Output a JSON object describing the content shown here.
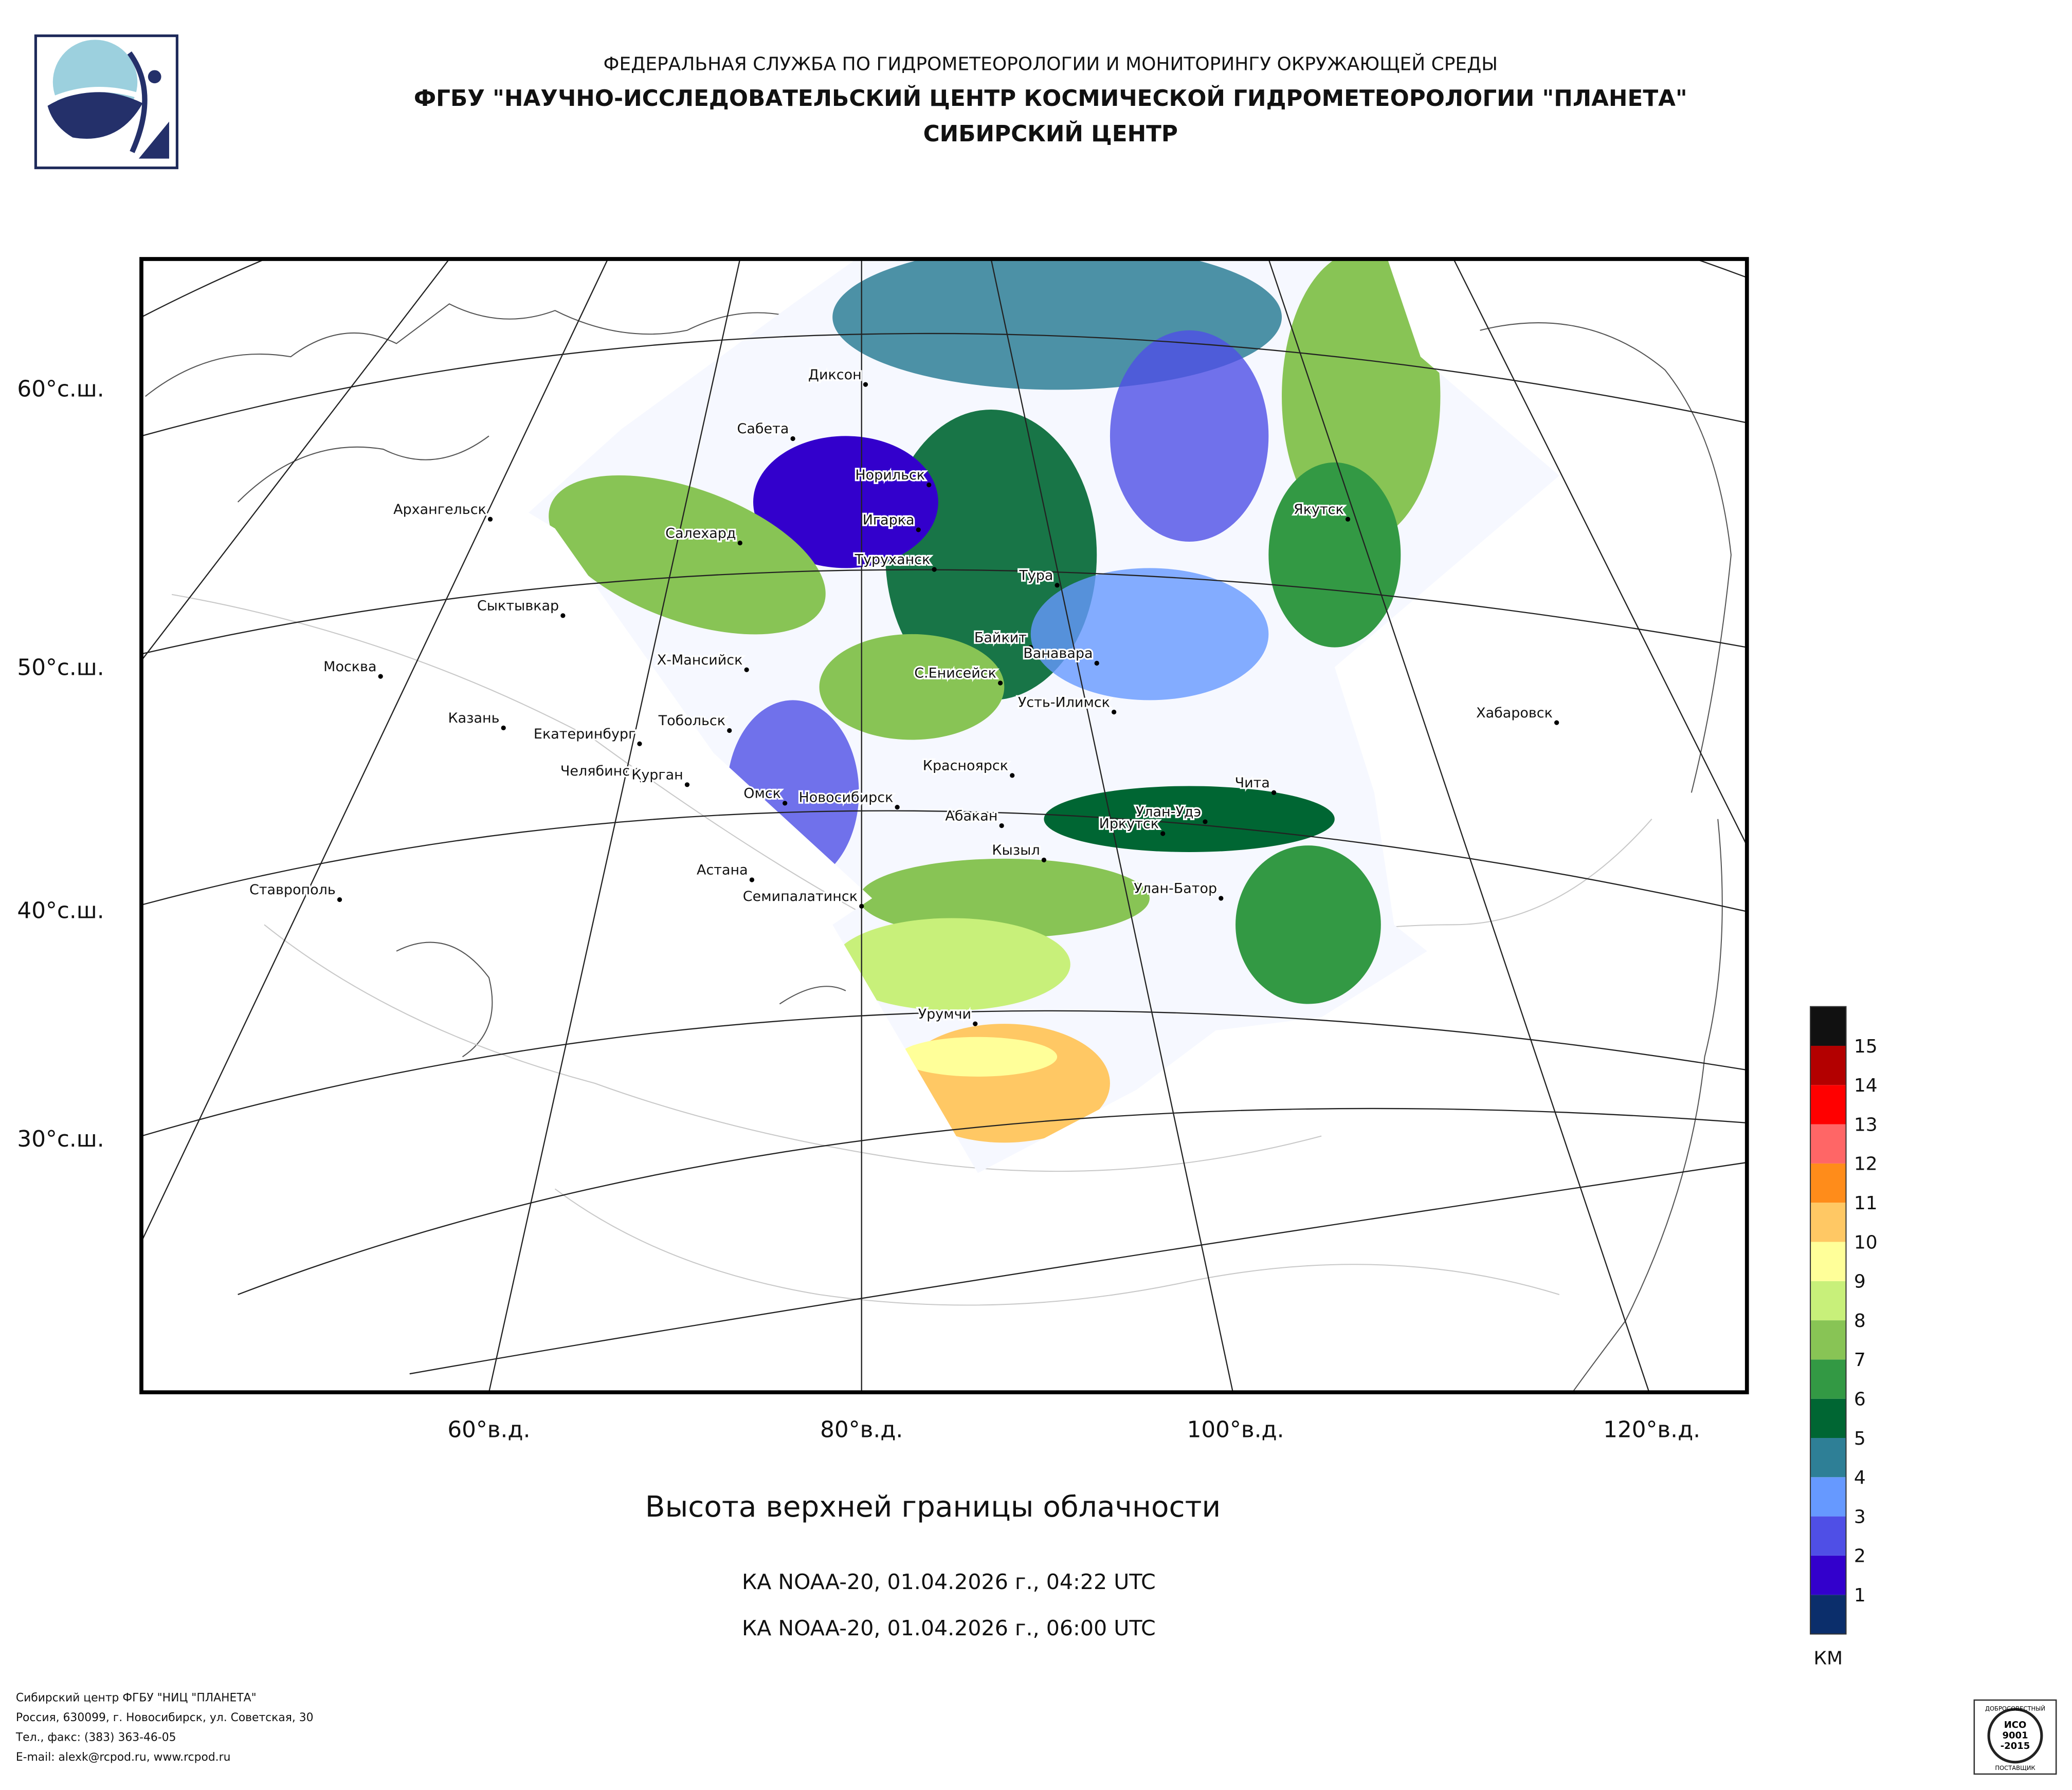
{
  "header": {
    "agency": "ФЕДЕРАЛЬНАЯ СЛУЖБА ПО ГИДРОМЕТЕОРОЛОГИИ И МОНИТОРИНГУ ОКРУЖАЮЩЕЙ СРЕДЫ",
    "center": "ФГБУ \"НАУЧНО-ИССЛЕДОВАТЕЛЬСКИЙ ЦЕНТР КОСМИЧЕСКОЙ ГИДРОМЕТЕОРОЛОГИИ \"ПЛАНЕТА\"",
    "branch": "СИБИРСКИЙ ЦЕНТР"
  },
  "map": {
    "lat_labels": [
      "60°с.ш.",
      "50°с.ш.",
      "40°с.ш.",
      "30°с.ш."
    ],
    "lon_labels": [
      "60°в.д.",
      "80°в.д.",
      "100°в.д.",
      "120°в.д."
    ],
    "cities": [
      "Диксон",
      "Сабета",
      "Норильск",
      "Игарка",
      "Салехард",
      "Туруханск",
      "Архангельск",
      "Тура",
      "Сыктывкар",
      "Якутск",
      "Байкит",
      "Ванавара",
      "Х-Мансийск",
      "С.Енисейск",
      "Москва",
      "Усть-Илимск",
      "Хабаровск",
      "Казань",
      "Тобольск",
      "Екатеринбург",
      "Красноярск",
      "Челябинск",
      "Курган",
      "Чита",
      "Омск",
      "Новосибирск",
      "Абакан",
      "Улан-Удэ",
      "Иркутск",
      "Кызыл",
      "Астана",
      "Улан-Батор",
      "Семипалатинск",
      "Ставрополь",
      "Урумчи"
    ]
  },
  "legend": {
    "colors": [
      "#0b2e6b",
      "#3300cc",
      "#4f4fe6",
      "#6699ff",
      "#2e7f96",
      "#006633",
      "#339944",
      "#88c455",
      "#c8f07a",
      "#ffff99",
      "#ffc864",
      "#ff8c1a",
      "#ff6666",
      "#ff0000",
      "#b30000",
      "#111111"
    ],
    "ticks": [
      1,
      2,
      3,
      4,
      5,
      6,
      7,
      8,
      9,
      10,
      11,
      12,
      13,
      14,
      15
    ],
    "unit": "КМ"
  },
  "title": "Высота верхней границы облачности",
  "captions": [
    "КА NOAA-20, 01.04.2026 г., 04:22 UTC",
    "КА NOAA-20, 01.04.2026 г., 06:00 UTC"
  ],
  "footer": [
    "Сибирский центр ФГБУ \"НИЦ \"ПЛАНЕТА\"",
    "Россия, 630099, г. Новосибирск, ул. Советская, 30",
    "Тел., факс: (383) 363-46-05",
    "E-mail: alexk@rcpod.ru, www.rcpod.ru"
  ],
  "badge": {
    "top": "ДОБРОСОВЕСТНЫЙ",
    "iso": [
      "ИСО",
      "9001",
      "-2015"
    ],
    "bottom": "ПОСТАВЩИК"
  }
}
